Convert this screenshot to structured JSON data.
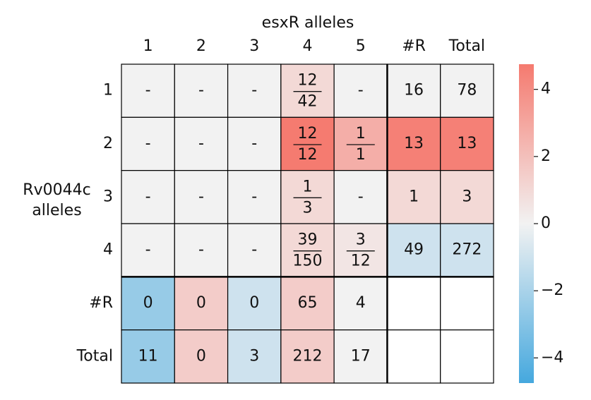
{
  "chart_data": {
    "type": "heatmap",
    "title": "esxR alleles",
    "ylabel": "Rv0044c alleles",
    "columns": [
      "1",
      "2",
      "3",
      "4",
      "5",
      "#R",
      "Total"
    ],
    "rows": [
      "1",
      "2",
      "3",
      "4",
      "#R",
      "Total"
    ],
    "values": [
      [
        0,
        0,
        0,
        1.0,
        0,
        0,
        0
      ],
      [
        0,
        0,
        0,
        4.7,
        2.7,
        4.5,
        4.5
      ],
      [
        0,
        0,
        0,
        1.0,
        0,
        1.0,
        1.0
      ],
      [
        0,
        0,
        0,
        1.0,
        0.5,
        -1.0,
        -1.0
      ],
      [
        -2.5,
        1.5,
        -1.0,
        1.5,
        0,
        null,
        null
      ],
      [
        -2.5,
        1.5,
        -1.0,
        1.5,
        0,
        null,
        null
      ]
    ],
    "cell_labels": [
      [
        "-",
        "-",
        "-",
        {
          "numerator": "12",
          "denominator": "42"
        },
        "-",
        16,
        78
      ],
      [
        "-",
        "-",
        "-",
        {
          "numerator": "12",
          "denominator": "12"
        },
        {
          "numerator": "1",
          "denominator": "1"
        },
        13,
        13
      ],
      [
        "-",
        "-",
        "-",
        {
          "numerator": "1",
          "denominator": "3"
        },
        "-",
        1,
        3
      ],
      [
        "-",
        "-",
        "-",
        {
          "numerator": "39",
          "denominator": "150"
        },
        {
          "numerator": "3",
          "denominator": "12"
        },
        49,
        272
      ],
      [
        0,
        0,
        0,
        65,
        4,
        null,
        null
      ],
      [
        11,
        0,
        3,
        212,
        17,
        null,
        null
      ]
    ],
    "colormap": [
      "#45a8de",
      "#f2f2f2",
      "#f57a6f"
    ],
    "clim": [
      -4.75,
      4.75
    ],
    "cticks": [
      {
        "value": -4,
        "label": "−4"
      },
      {
        "value": -2,
        "label": "−2"
      },
      0,
      2,
      4
    ]
  }
}
